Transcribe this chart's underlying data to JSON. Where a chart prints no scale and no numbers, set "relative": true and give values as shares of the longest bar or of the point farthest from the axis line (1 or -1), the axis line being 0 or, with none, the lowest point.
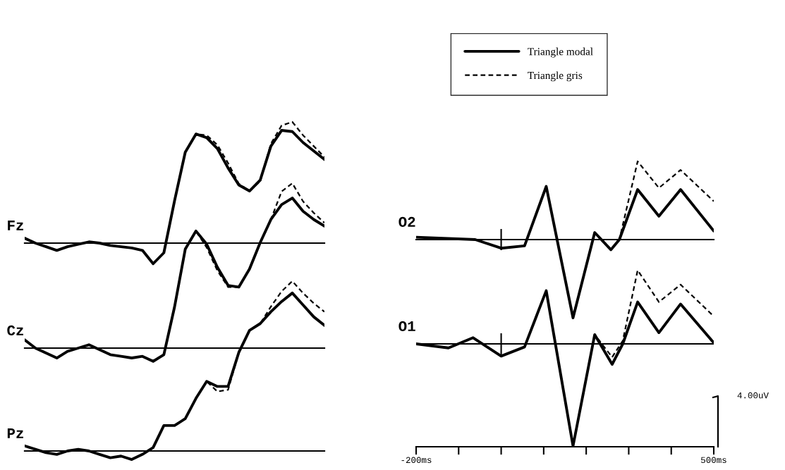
{
  "chart_data": [
    {
      "type": "line",
      "title": "Fz",
      "relative": true,
      "tick_labels": false,
      "categories": [
        null,
        null,
        null,
        null,
        null,
        null,
        null,
        null,
        null,
        null,
        null,
        null,
        null,
        null,
        null,
        null,
        null,
        null,
        null,
        null,
        null,
        null,
        null,
        null,
        null,
        null,
        null,
        null,
        null
      ],
      "series": [
        {
          "color": "#000000",
          "line_style": "solid",
          "values": [
            0.04,
            0.0,
            -0.03,
            -0.06,
            -0.03,
            -0.01,
            0.01,
            0.0,
            -0.02,
            -0.03,
            -0.04,
            -0.06,
            -0.17,
            -0.08,
            0.35,
            0.75,
            0.9,
            0.87,
            0.78,
            0.62,
            0.48,
            0.43,
            0.52,
            0.8,
            0.93,
            0.92,
            0.83,
            0.76,
            0.69
          ]
        },
        {
          "color": "#000000",
          "line_style": "dashed",
          "values": [
            0.04,
            0.0,
            -0.03,
            -0.06,
            -0.03,
            -0.01,
            0.01,
            0.0,
            -0.02,
            -0.03,
            -0.04,
            -0.06,
            -0.17,
            -0.08,
            0.35,
            0.75,
            0.9,
            0.89,
            0.81,
            0.66,
            0.49,
            0.43,
            0.51,
            0.82,
            0.97,
            1.0,
            0.89,
            0.8,
            0.71
          ]
        }
      ]
    },
    {
      "type": "line",
      "title": "Cz",
      "relative": true,
      "tick_labels": false,
      "categories": [
        null,
        null,
        null,
        null,
        null,
        null,
        null,
        null,
        null,
        null,
        null,
        null,
        null,
        null,
        null,
        null,
        null,
        null,
        null,
        null,
        null,
        null,
        null,
        null,
        null,
        null,
        null,
        null,
        null
      ],
      "series": [
        {
          "color": "#000000",
          "line_style": "solid",
          "values": [
            0.05,
            0.0,
            -0.03,
            -0.06,
            -0.02,
            0.0,
            0.02,
            -0.01,
            -0.04,
            -0.05,
            -0.06,
            -0.05,
            -0.08,
            -0.04,
            0.25,
            0.6,
            0.71,
            0.63,
            0.49,
            0.38,
            0.37,
            0.48,
            0.64,
            0.78,
            0.87,
            0.91,
            0.83,
            0.78,
            0.74
          ]
        },
        {
          "color": "#000000",
          "line_style": "dashed",
          "values": [
            0.05,
            0.0,
            -0.03,
            -0.06,
            -0.02,
            0.0,
            0.02,
            -0.01,
            -0.04,
            -0.05,
            -0.06,
            -0.05,
            -0.08,
            -0.04,
            0.25,
            0.6,
            0.71,
            0.61,
            0.47,
            0.37,
            0.37,
            0.48,
            0.64,
            0.78,
            0.95,
            1.0,
            0.89,
            0.82,
            0.76
          ]
        }
      ]
    },
    {
      "type": "line",
      "title": "Pz",
      "relative": true,
      "tick_labels": false,
      "categories": [
        null,
        null,
        null,
        null,
        null,
        null,
        null,
        null,
        null,
        null,
        null,
        null,
        null,
        null,
        null,
        null,
        null,
        null,
        null,
        null,
        null,
        null,
        null,
        null,
        null,
        null,
        null,
        null,
        null
      ],
      "series": [
        {
          "color": "#000000",
          "line_style": "solid",
          "values": [
            0.03,
            0.01,
            -0.01,
            -0.02,
            0.0,
            0.01,
            0.0,
            -0.02,
            -0.04,
            -0.03,
            -0.05,
            -0.02,
            0.02,
            0.15,
            0.15,
            0.19,
            0.31,
            0.41,
            0.38,
            0.38,
            0.58,
            0.71,
            0.75,
            0.82,
            0.88,
            0.93,
            0.86,
            0.79,
            0.74
          ]
        },
        {
          "color": "#000000",
          "line_style": "dashed",
          "values": [
            0.03,
            0.01,
            -0.01,
            -0.02,
            0.0,
            0.01,
            0.0,
            -0.02,
            -0.04,
            -0.03,
            -0.05,
            -0.02,
            0.02,
            0.15,
            0.15,
            0.19,
            0.31,
            0.41,
            0.35,
            0.36,
            0.58,
            0.71,
            0.75,
            0.85,
            0.94,
            1.0,
            0.93,
            0.87,
            0.82
          ]
        }
      ]
    },
    {
      "type": "line",
      "title": "O2",
      "relative": true,
      "xlim": [
        -200,
        500
      ],
      "tick_labels": false,
      "legend": "top",
      "ref_lines": [
        {
          "axis": "x",
          "value": 0
        }
      ],
      "series": [
        {
          "name": "Triangle modal",
          "color": "#000000",
          "line_style": "solid",
          "x": [
            -200,
            -61,
            0,
            55,
            106,
            169,
            220,
            258,
            278,
            321,
            371,
            422,
            500
          ],
          "values": [
            0.03,
            0,
            -0.11,
            -0.08,
            0.68,
            -1.0,
            0.09,
            -0.13,
            0,
            0.64,
            0.3,
            0.64,
            0.11
          ]
        },
        {
          "name": "Triangle gris",
          "color": "#000000",
          "line_style": "dashed",
          "x": [
            -200,
            -61,
            0,
            55,
            106,
            169,
            220,
            258,
            278,
            321,
            371,
            422,
            500
          ],
          "values": [
            0.03,
            0,
            -0.11,
            -0.08,
            0.68,
            -1.0,
            0.09,
            -0.13,
            0,
            1.0,
            0.66,
            0.89,
            0.49
          ]
        }
      ]
    },
    {
      "type": "line",
      "title": "O1",
      "relative": true,
      "xlim": [
        -200,
        500
      ],
      "tick_labels": "x",
      "xticks": [
        {
          "value": -200,
          "label": "-200ms"
        },
        {
          "value": -100,
          "label": null
        },
        {
          "value": 0,
          "label": null
        },
        {
          "value": 100,
          "label": null
        },
        {
          "value": 200,
          "label": null
        },
        {
          "value": 300,
          "label": null
        },
        {
          "value": 400,
          "label": null
        },
        {
          "value": 500,
          "label": "500ms"
        }
      ],
      "ref_lines": [
        {
          "axis": "x",
          "value": 0
        }
      ],
      "annotations": [
        "4.00uV"
      ],
      "series": [
        {
          "color": "#000000",
          "line_style": "solid",
          "x": [
            -200,
            -124,
            -66,
            0,
            55,
            106,
            169,
            220,
            261,
            286,
            321,
            371,
            422,
            500
          ],
          "values": [
            0,
            -0.04,
            0.06,
            -0.12,
            -0.03,
            0.52,
            -1.0,
            0.09,
            -0.2,
            0,
            0.41,
            0.11,
            0.39,
            0.01
          ]
        },
        {
          "color": "#000000",
          "line_style": "dashed",
          "x": [
            -200,
            -124,
            -66,
            0,
            55,
            106,
            169,
            220,
            261,
            286,
            321,
            371,
            422,
            500
          ],
          "values": [
            0,
            -0.04,
            0.06,
            -0.12,
            -0.03,
            0.52,
            -1.0,
            0.09,
            -0.13,
            0.03,
            0.72,
            0.41,
            0.58,
            0.27
          ]
        }
      ]
    }
  ]
}
